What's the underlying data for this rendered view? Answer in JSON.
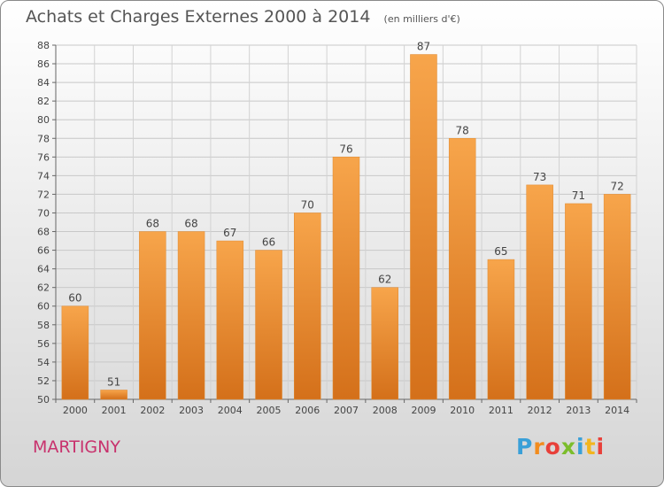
{
  "header": {
    "title": "Achats et Charges Externes 2000 à 2014",
    "unit": "(en milliers d'€)"
  },
  "footer": {
    "city": "MARTIGNY",
    "logo_letters": [
      "P",
      "r",
      "o",
      "x",
      "i",
      "t",
      "i"
    ],
    "logo_colors": [
      "#3aa0d8",
      "#f28c1e",
      "#e8403a",
      "#7cbd2c",
      "#3aa0d8",
      "#f2b51e",
      "#e8403a"
    ]
  },
  "chart_data": {
    "type": "bar",
    "title": "Achats et Charges Externes 2000 à 2014",
    "unit": "(en milliers d'€)",
    "categories": [
      "2000",
      "2001",
      "2002",
      "2003",
      "2004",
      "2005",
      "2006",
      "2007",
      "2008",
      "2009",
      "2010",
      "2011",
      "2012",
      "2013",
      "2014"
    ],
    "values": [
      60,
      51,
      68,
      68,
      67,
      66,
      70,
      76,
      62,
      87,
      78,
      65,
      73,
      71,
      72
    ],
    "ylim": [
      50,
      88
    ],
    "yticks": [
      50,
      52,
      54,
      56,
      58,
      60,
      62,
      64,
      66,
      68,
      70,
      72,
      74,
      76,
      78,
      80,
      82,
      84,
      86,
      88
    ],
    "grid": true,
    "bar_color_top": "#f7a54b",
    "bar_color_bottom": "#d4701a"
  }
}
